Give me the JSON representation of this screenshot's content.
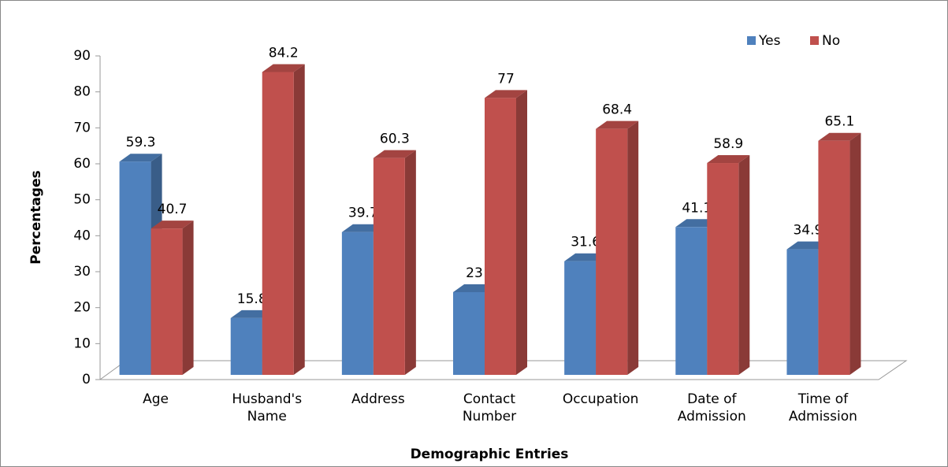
{
  "chart_data": {
    "type": "bar3d",
    "x_label": "Demographic Entries",
    "y_label": "Percentages",
    "categories": [
      "Age",
      "Husband's Name",
      "Address",
      "Contact Number",
      "Occupation",
      "Date of Admission",
      "Time of Admission"
    ],
    "series": [
      {
        "name": "Yes",
        "color": "#4f81bd",
        "values": [
          59.3,
          15.8,
          39.7,
          23,
          31.6,
          41.1,
          34.9
        ]
      },
      {
        "name": "No",
        "color": "#c0504d",
        "values": [
          40.7,
          84.2,
          60.3,
          77,
          68.4,
          58.9,
          65.1
        ]
      }
    ],
    "ylim": [
      0,
      90
    ],
    "yticks": [
      0,
      10,
      20,
      30,
      40,
      50,
      60,
      70,
      80,
      90
    ],
    "legend": "top-right"
  }
}
